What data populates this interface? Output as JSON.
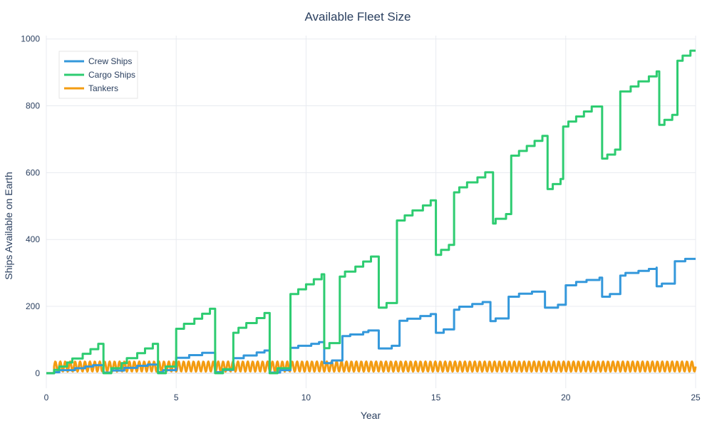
{
  "chart_data": {
    "type": "line",
    "title": "Available Fleet Size",
    "xlabel": "Year",
    "ylabel": "Ships Available on Earth",
    "xlim": [
      0,
      25
    ],
    "ylim": [
      -45,
      1010
    ],
    "x_ticks": [
      0,
      5,
      10,
      15,
      20,
      25
    ],
    "y_ticks": [
      0,
      200,
      400,
      600,
      800,
      1000
    ],
    "grid": true,
    "legend_position": "top-left",
    "series": [
      {
        "name": "Crew Ships",
        "color": "#3498db",
        "points": [
          [
            0,
            0
          ],
          [
            0.3,
            0
          ],
          [
            0.3,
            3
          ],
          [
            0.5,
            3
          ],
          [
            0.5,
            9
          ],
          [
            1.1,
            9
          ],
          [
            1.1,
            15
          ],
          [
            1.5,
            15
          ],
          [
            1.5,
            20
          ],
          [
            1.8,
            20
          ],
          [
            1.8,
            24
          ],
          [
            2.2,
            24
          ],
          [
            2.2,
            2
          ],
          [
            2.5,
            2
          ],
          [
            2.5,
            8
          ],
          [
            3.0,
            8
          ],
          [
            3.0,
            16
          ],
          [
            3.5,
            16
          ],
          [
            3.5,
            22
          ],
          [
            3.9,
            22
          ],
          [
            3.9,
            26
          ],
          [
            4.3,
            26
          ],
          [
            4.3,
            3
          ],
          [
            4.5,
            3
          ],
          [
            4.5,
            9
          ],
          [
            5.0,
            9
          ],
          [
            5.0,
            46
          ],
          [
            5.5,
            46
          ],
          [
            5.5,
            54
          ],
          [
            6.0,
            54
          ],
          [
            6.0,
            61
          ],
          [
            6.5,
            61
          ],
          [
            6.5,
            3
          ],
          [
            6.8,
            3
          ],
          [
            6.8,
            10
          ],
          [
            7.2,
            10
          ],
          [
            7.2,
            45
          ],
          [
            7.6,
            45
          ],
          [
            7.6,
            53
          ],
          [
            8.1,
            53
          ],
          [
            8.1,
            62
          ],
          [
            8.4,
            62
          ],
          [
            8.4,
            68
          ],
          [
            8.6,
            68
          ],
          [
            8.6,
            2
          ],
          [
            9.0,
            2
          ],
          [
            9.0,
            9
          ],
          [
            9.4,
            9
          ],
          [
            9.4,
            76
          ],
          [
            9.7,
            76
          ],
          [
            9.7,
            82
          ],
          [
            10.2,
            82
          ],
          [
            10.2,
            88
          ],
          [
            10.5,
            88
          ],
          [
            10.5,
            93
          ],
          [
            10.7,
            93
          ],
          [
            10.7,
            30
          ],
          [
            11.0,
            30
          ],
          [
            11.0,
            38
          ],
          [
            11.4,
            38
          ],
          [
            11.4,
            111
          ],
          [
            11.7,
            111
          ],
          [
            11.7,
            116
          ],
          [
            12.2,
            116
          ],
          [
            12.2,
            123
          ],
          [
            12.4,
            123
          ],
          [
            12.4,
            128
          ],
          [
            12.8,
            128
          ],
          [
            12.8,
            74
          ],
          [
            13.3,
            74
          ],
          [
            13.3,
            82
          ],
          [
            13.6,
            82
          ],
          [
            13.6,
            157
          ],
          [
            13.9,
            157
          ],
          [
            13.9,
            163
          ],
          [
            14.4,
            163
          ],
          [
            14.4,
            171
          ],
          [
            14.8,
            171
          ],
          [
            14.8,
            177
          ],
          [
            15.0,
            177
          ],
          [
            15.0,
            121
          ],
          [
            15.3,
            121
          ],
          [
            15.3,
            131
          ],
          [
            15.7,
            131
          ],
          [
            15.7,
            190
          ],
          [
            15.9,
            190
          ],
          [
            15.9,
            199
          ],
          [
            16.4,
            199
          ],
          [
            16.4,
            207
          ],
          [
            16.8,
            207
          ],
          [
            16.8,
            213
          ],
          [
            17.1,
            213
          ],
          [
            17.1,
            156
          ],
          [
            17.3,
            156
          ],
          [
            17.3,
            164
          ],
          [
            17.8,
            164
          ],
          [
            17.8,
            229
          ],
          [
            18.2,
            229
          ],
          [
            18.2,
            238
          ],
          [
            18.7,
            238
          ],
          [
            18.7,
            244
          ],
          [
            19.2,
            244
          ],
          [
            19.2,
            196
          ],
          [
            19.7,
            196
          ],
          [
            19.7,
            205
          ],
          [
            20.0,
            205
          ],
          [
            20.0,
            263
          ],
          [
            20.4,
            263
          ],
          [
            20.4,
            273
          ],
          [
            20.8,
            273
          ],
          [
            20.8,
            279
          ],
          [
            21.3,
            279
          ],
          [
            21.3,
            286
          ],
          [
            21.4,
            286
          ],
          [
            21.4,
            229
          ],
          [
            21.7,
            229
          ],
          [
            21.7,
            237
          ],
          [
            22.1,
            237
          ],
          [
            22.1,
            292
          ],
          [
            22.3,
            292
          ],
          [
            22.3,
            300
          ],
          [
            22.8,
            300
          ],
          [
            22.8,
            306
          ],
          [
            23.2,
            306
          ],
          [
            23.2,
            312
          ],
          [
            23.5,
            312
          ],
          [
            23.5,
            316
          ],
          [
            23.5,
            316
          ],
          [
            23.5,
            260
          ],
          [
            23.7,
            260
          ],
          [
            23.7,
            268
          ],
          [
            24.2,
            268
          ],
          [
            24.2,
            335
          ],
          [
            24.6,
            335
          ],
          [
            24.6,
            342
          ],
          [
            25,
            342
          ]
        ]
      },
      {
        "name": "Cargo Ships",
        "color": "#2ecc71",
        "points": [
          [
            0,
            0
          ],
          [
            0.3,
            0
          ],
          [
            0.3,
            10
          ],
          [
            0.5,
            10
          ],
          [
            0.5,
            20
          ],
          [
            0.8,
            20
          ],
          [
            0.8,
            32
          ],
          [
            1.0,
            32
          ],
          [
            1.0,
            44
          ],
          [
            1.4,
            44
          ],
          [
            1.4,
            58
          ],
          [
            1.7,
            58
          ],
          [
            1.7,
            72
          ],
          [
            2.0,
            72
          ],
          [
            2.0,
            88
          ],
          [
            2.2,
            88
          ],
          [
            2.2,
            0
          ],
          [
            2.5,
            0
          ],
          [
            2.5,
            15
          ],
          [
            2.9,
            15
          ],
          [
            2.9,
            30
          ],
          [
            3.1,
            30
          ],
          [
            3.1,
            45
          ],
          [
            3.5,
            45
          ],
          [
            3.5,
            60
          ],
          [
            3.8,
            60
          ],
          [
            3.8,
            74
          ],
          [
            4.1,
            74
          ],
          [
            4.1,
            88
          ],
          [
            4.3,
            88
          ],
          [
            4.3,
            0
          ],
          [
            4.6,
            0
          ],
          [
            4.6,
            20
          ],
          [
            5.0,
            20
          ],
          [
            5.0,
            133
          ],
          [
            5.3,
            133
          ],
          [
            5.3,
            148
          ],
          [
            5.7,
            148
          ],
          [
            5.7,
            163
          ],
          [
            6.0,
            163
          ],
          [
            6.0,
            178
          ],
          [
            6.3,
            178
          ],
          [
            6.3,
            193
          ],
          [
            6.5,
            193
          ],
          [
            6.5,
            0
          ],
          [
            6.8,
            0
          ],
          [
            6.8,
            12
          ],
          [
            7.2,
            12
          ],
          [
            7.2,
            121
          ],
          [
            7.4,
            121
          ],
          [
            7.4,
            136
          ],
          [
            7.7,
            136
          ],
          [
            7.7,
            150
          ],
          [
            8.1,
            150
          ],
          [
            8.1,
            165
          ],
          [
            8.4,
            165
          ],
          [
            8.4,
            180
          ],
          [
            8.6,
            180
          ],
          [
            8.6,
            0
          ],
          [
            8.9,
            0
          ],
          [
            8.9,
            15
          ],
          [
            9.4,
            15
          ],
          [
            9.4,
            237
          ],
          [
            9.7,
            237
          ],
          [
            9.7,
            251
          ],
          [
            10.0,
            251
          ],
          [
            10.0,
            266
          ],
          [
            10.3,
            266
          ],
          [
            10.3,
            281
          ],
          [
            10.6,
            281
          ],
          [
            10.6,
            296
          ],
          [
            10.7,
            296
          ],
          [
            10.7,
            75
          ],
          [
            10.9,
            75
          ],
          [
            10.9,
            90
          ],
          [
            11.3,
            90
          ],
          [
            11.3,
            289
          ],
          [
            11.5,
            289
          ],
          [
            11.5,
            304
          ],
          [
            11.9,
            304
          ],
          [
            11.9,
            319
          ],
          [
            12.2,
            319
          ],
          [
            12.2,
            334
          ],
          [
            12.5,
            334
          ],
          [
            12.5,
            349
          ],
          [
            12.8,
            349
          ],
          [
            12.8,
            196
          ],
          [
            13.1,
            196
          ],
          [
            13.1,
            210
          ],
          [
            13.5,
            210
          ],
          [
            13.5,
            457
          ],
          [
            13.8,
            457
          ],
          [
            13.8,
            472
          ],
          [
            14.1,
            472
          ],
          [
            14.1,
            487
          ],
          [
            14.5,
            487
          ],
          [
            14.5,
            502
          ],
          [
            14.8,
            502
          ],
          [
            14.8,
            517
          ],
          [
            15.0,
            517
          ],
          [
            15.0,
            354
          ],
          [
            15.2,
            354
          ],
          [
            15.2,
            369
          ],
          [
            15.5,
            369
          ],
          [
            15.5,
            384
          ],
          [
            15.7,
            384
          ],
          [
            15.7,
            541
          ],
          [
            15.9,
            541
          ],
          [
            15.9,
            556
          ],
          [
            16.2,
            556
          ],
          [
            16.2,
            571
          ],
          [
            16.6,
            571
          ],
          [
            16.6,
            586
          ],
          [
            16.9,
            586
          ],
          [
            16.9,
            601
          ],
          [
            17.2,
            601
          ],
          [
            17.2,
            448
          ],
          [
            17.3,
            448
          ],
          [
            17.3,
            462
          ],
          [
            17.7,
            462
          ],
          [
            17.7,
            476
          ],
          [
            17.9,
            476
          ],
          [
            17.9,
            651
          ],
          [
            18.2,
            651
          ],
          [
            18.2,
            665
          ],
          [
            18.5,
            665
          ],
          [
            18.5,
            680
          ],
          [
            18.8,
            680
          ],
          [
            18.8,
            695
          ],
          [
            19.1,
            695
          ],
          [
            19.1,
            710
          ],
          [
            19.3,
            710
          ],
          [
            19.3,
            551
          ],
          [
            19.5,
            551
          ],
          [
            19.5,
            566
          ],
          [
            19.8,
            566
          ],
          [
            19.8,
            581
          ],
          [
            19.9,
            581
          ],
          [
            19.9,
            738
          ],
          [
            20.1,
            738
          ],
          [
            20.1,
            753
          ],
          [
            20.4,
            753
          ],
          [
            20.4,
            768
          ],
          [
            20.7,
            768
          ],
          [
            20.7,
            783
          ],
          [
            21.0,
            783
          ],
          [
            21.0,
            798
          ],
          [
            21.4,
            798
          ],
          [
            21.4,
            642
          ],
          [
            21.6,
            642
          ],
          [
            21.6,
            654
          ],
          [
            21.9,
            654
          ],
          [
            21.9,
            669
          ],
          [
            22.1,
            669
          ],
          [
            22.1,
            843
          ],
          [
            22.5,
            843
          ],
          [
            22.5,
            858
          ],
          [
            22.8,
            858
          ],
          [
            22.8,
            873
          ],
          [
            23.2,
            873
          ],
          [
            23.2,
            888
          ],
          [
            23.5,
            888
          ],
          [
            23.5,
            903
          ],
          [
            23.6,
            903
          ],
          [
            23.6,
            743
          ],
          [
            23.8,
            743
          ],
          [
            23.8,
            758
          ],
          [
            24.1,
            758
          ],
          [
            24.1,
            773
          ],
          [
            24.3,
            773
          ],
          [
            24.3,
            935
          ],
          [
            24.5,
            935
          ],
          [
            24.5,
            950
          ],
          [
            24.8,
            950
          ],
          [
            24.8,
            965
          ],
          [
            25,
            965
          ]
        ]
      },
      {
        "name": "Tankers",
        "color": "#f39c12",
        "base": 20,
        "amplitude": 15,
        "period": 0.19,
        "start": 0.3
      }
    ]
  }
}
